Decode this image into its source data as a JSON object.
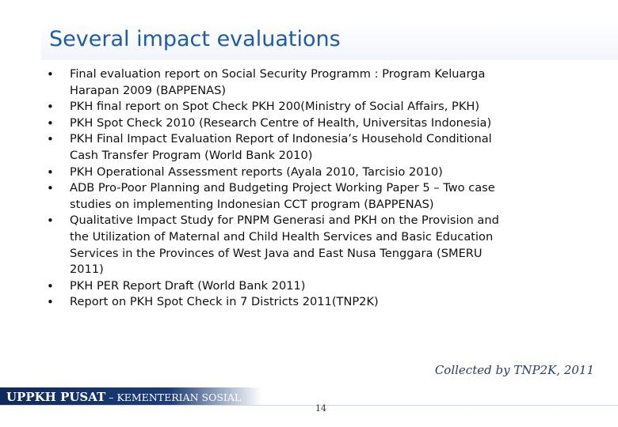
{
  "slide": {
    "title": "Several impact evaluations",
    "bullets": [
      {
        "lines": [
          "Final evaluation report on Social Security Programm : Program Keluarga",
          "Harapan 2009 (BAPPENAS)"
        ]
      },
      {
        "lines": [
          "PKH final report on Spot Check PKH 200(Ministry of Social Affairs, PKH)"
        ]
      },
      {
        "lines": [
          "PKH Spot Check 2010 (Research Centre of Health, Universitas Indonesia)"
        ]
      },
      {
        "lines": [
          "PKH Final Impact Evaluation Report of Indonesia’s Household  Conditional",
          "Cash Transfer Program (World Bank 2010)"
        ]
      },
      {
        "lines": [
          "PKH Operational Assessment reports (Ayala 2010, Tarcisio 2010)"
        ]
      },
      {
        "lines": [
          "ADB Pro-Poor Planning and Budgeting Project Working Paper 5 – Two case",
          "studies on implementing Indonesian CCT program (BAPPENAS)"
        ]
      },
      {
        "lines": [
          "Qualitative Impact Study for PNPM Generasi and PKH on the Provision and",
          "the Utilization of Maternal and Child Health Services and Basic Education",
          "Services in the Provinces of West Java and East Nusa Tenggara (SMERU",
          "2011)"
        ]
      },
      {
        "lines": [
          "PKH PER Report Draft (World Bank 2011)"
        ]
      },
      {
        "lines": [
          "Report on PKH Spot Check in 7 Districts 2011(TNP2K)"
        ]
      }
    ],
    "credit": "Collected by TNP2K, 2011"
  },
  "footer": {
    "org_bold": "UPPKH PUSAT",
    "org_rest": " – KEMENTERIAN SOSIAL",
    "page_number": "14"
  },
  "colors": {
    "title": "#1f5bab",
    "footer_bar": "#0d2a5c",
    "body_text": "#111111"
  }
}
